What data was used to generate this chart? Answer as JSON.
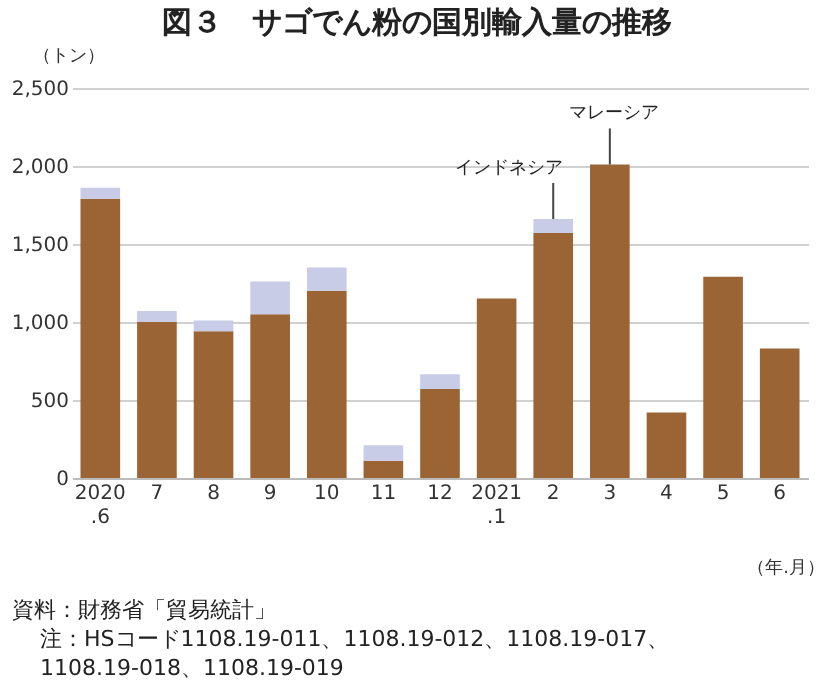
{
  "chart_data": {
    "type": "bar",
    "title": "図３　サゴでん粉の国別輸入量の推移",
    "ylabel": "（トン）",
    "xlabel": "（年.月）",
    "categories": [
      "2020\n.6",
      "7",
      "8",
      "9",
      "10",
      "11",
      "12",
      "2021\n.1",
      "2",
      "3",
      "4",
      "5",
      "6"
    ],
    "stacked": true,
    "series": [
      {
        "color": "#9a6434",
        "values": [
          1790,
          1000,
          940,
          1050,
          1200,
          110,
          570,
          1150,
          1570,
          2010,
          420,
          1290,
          830
        ]
      },
      {
        "color": "#c8cce6",
        "values": [
          70,
          70,
          70,
          210,
          150,
          100,
          95,
          null,
          90,
          null,
          null,
          null,
          null
        ]
      }
    ],
    "ylim": [
      0,
      2500
    ],
    "yticks": [
      0,
      500,
      {
        "value": 1000,
        "label": "1,000"
      },
      {
        "value": 1500,
        "label": "1,500"
      },
      {
        "value": 2000,
        "label": "2,000"
      },
      {
        "value": 2500,
        "label": "2,500"
      }
    ],
    "grid": "y",
    "legend": false,
    "annotations": [
      {
        "text": "インドネシア",
        "x": "2",
        "y": 1660
      },
      {
        "text": "マレーシア",
        "x": "3",
        "y": 2010
      },
      "資料：財務省「貿易統計」",
      "注：HSコード1108.19-011、1108.19-012、1108.19-017、",
      "1108.19-018、1108.19-019"
    ]
  }
}
